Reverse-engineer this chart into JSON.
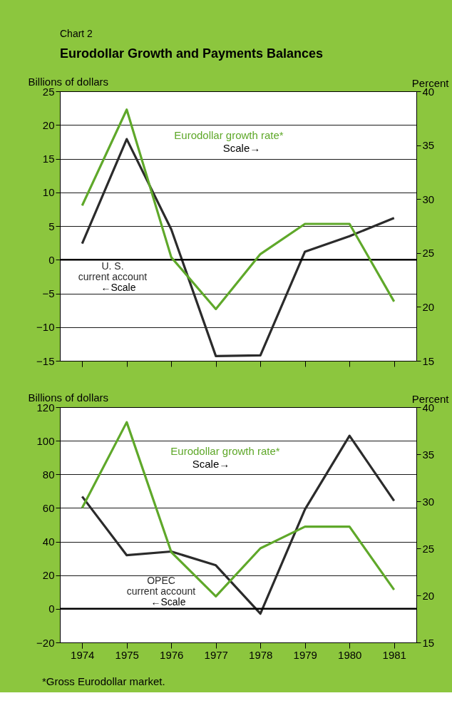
{
  "chart_data": [
    {
      "type": "line",
      "title": "Eurodollar Growth and Payments Balances",
      "ylabel": "Billions of dollars",
      "y2label": "Percent",
      "annotations": [
        "Chart 2",
        "Scale→",
        "←Scale"
      ],
      "categories": [
        "1974",
        "1975",
        "1976",
        "1977",
        "1978",
        "1979",
        "1980",
        "1981"
      ],
      "series": [
        {
          "name": "Eurodollar growth rate*",
          "color": "#5fa82a",
          "axis": "y2",
          "values": [
            29.4,
            38.3,
            24.6,
            19.8,
            24.9,
            27.7,
            27.7,
            20.5
          ]
        },
        {
          "name": "U. S.\ncurrent account",
          "color": "#2b2b2b",
          "values": [
            2.4,
            17.9,
            4.5,
            -14.3,
            -14.2,
            1.2,
            3.5,
            6.2
          ]
        }
      ],
      "ylim": [
        -15,
        25
      ],
      "yticks": [
        -15,
        -10,
        -5,
        0,
        5,
        10,
        15,
        20,
        25
      ],
      "y2lim": [
        15,
        40
      ],
      "y2ticks": [
        15,
        20,
        25,
        30,
        35,
        40
      ],
      "ref_lines": [
        {
          "axis": "y",
          "value": 0
        }
      ],
      "grid": "y",
      "tick_labels": "y"
    },
    {
      "type": "line",
      "ylabel": "Billions of dollars",
      "y2label": "Percent",
      "annotations": [
        "Scale→",
        "←Scale",
        "*Gross Eurodollar market."
      ],
      "categories": [
        "1974",
        "1975",
        "1976",
        "1977",
        "1978",
        "1979",
        "1980",
        "1981"
      ],
      "series": [
        {
          "name": "Eurodollar growth rate*",
          "color": "#5fa82a",
          "axis": "y2",
          "values": [
            29.3,
            38.4,
            24.6,
            19.9,
            25.0,
            27.3,
            27.3,
            20.6
          ]
        },
        {
          "name": "OPEC\ncurrent account",
          "color": "#2b2b2b",
          "values": [
            66.8,
            31.9,
            34.1,
            25.9,
            -2.9,
            59.2,
            103,
            64.3
          ]
        }
      ],
      "ylim": [
        -20,
        120
      ],
      "yticks": [
        -20,
        0,
        20,
        40,
        60,
        80,
        100,
        120
      ],
      "y2lim": [
        15,
        40
      ],
      "y2ticks": [
        15,
        20,
        25,
        30,
        35,
        40
      ],
      "ref_lines": [
        {
          "axis": "y",
          "value": 0
        }
      ],
      "grid": "y"
    }
  ]
}
